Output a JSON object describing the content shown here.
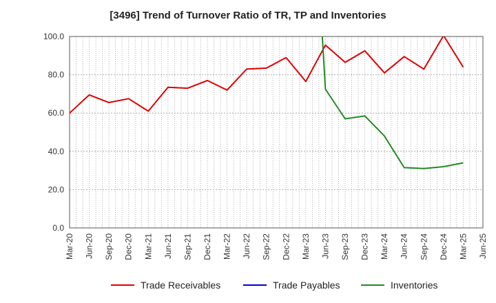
{
  "chart_data": {
    "type": "line",
    "title": "[3496]  Trend of Turnover Ratio of TR, TP and Inventories",
    "xlabel": "",
    "ylabel": "",
    "ylim": [
      0,
      100
    ],
    "yticks": [
      "0.0",
      "20.0",
      "40.0",
      "60.0",
      "80.0",
      "100.0"
    ],
    "grid": true,
    "legend_position": "bottom",
    "x": [
      "Mar-20",
      "Jun-20",
      "Sep-20",
      "Dec-20",
      "Mar-21",
      "Jun-21",
      "Sep-21",
      "Dec-21",
      "Mar-22",
      "Jun-22",
      "Sep-22",
      "Dec-22",
      "Mar-23",
      "Jun-23",
      "Sep-23",
      "Dec-23",
      "Mar-24",
      "Jun-24",
      "Sep-24",
      "Dec-24",
      "Mar-25",
      "Jun-25"
    ],
    "series": [
      {
        "name": "Trade Receivables",
        "color": "#dd0000",
        "values": [
          60.0,
          69.5,
          65.5,
          67.5,
          61.0,
          73.5,
          73.0,
          77.0,
          72.0,
          83.0,
          83.5,
          89.0,
          76.5,
          95.5,
          86.5,
          92.5,
          81.0,
          89.5,
          83.0,
          100.5,
          84.0,
          null
        ]
      },
      {
        "name": "Trade Payables",
        "color": "#0000cc",
        "values": [
          null,
          null,
          null,
          null,
          null,
          null,
          null,
          null,
          null,
          null,
          null,
          null,
          null,
          null,
          null,
          null,
          null,
          null,
          null,
          null,
          null,
          null
        ]
      },
      {
        "name": "Inventories",
        "color": "#228822",
        "values": [
          null,
          null,
          null,
          null,
          null,
          null,
          null,
          null,
          null,
          null,
          null,
          null,
          null,
          72.5,
          57.0,
          58.5,
          48.0,
          31.5,
          31.0,
          32.0,
          34.0,
          null
        ],
        "note_from_above": 100
      }
    ]
  }
}
